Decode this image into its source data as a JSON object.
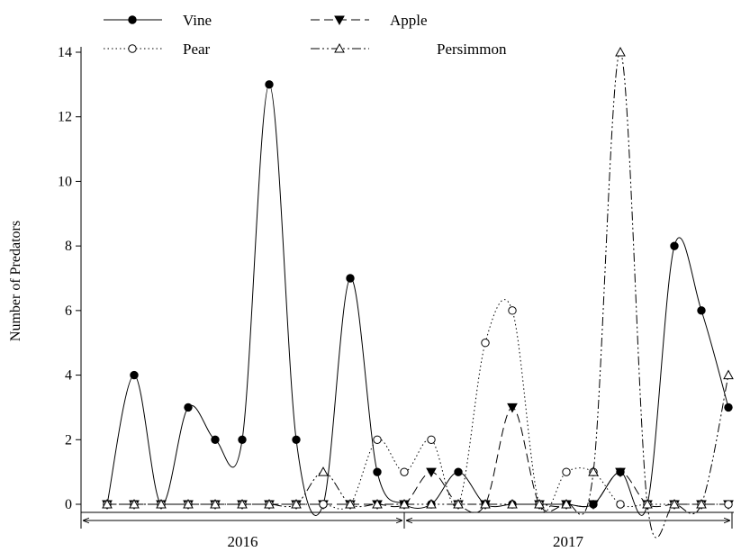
{
  "chart_data": {
    "type": "line",
    "title": "",
    "xlabel": "",
    "ylabel": "Number of Predators",
    "ylim": [
      0,
      14
    ],
    "yticks": [
      0,
      2,
      4,
      6,
      8,
      10,
      12,
      14
    ],
    "x_range": [
      1,
      24
    ],
    "grid": false,
    "legend_position": "top",
    "period_labels": [
      {
        "label": "2016",
        "from": 0,
        "to": 12
      },
      {
        "label": "2017",
        "from": 12,
        "to": 25
      }
    ],
    "series": [
      {
        "name": "Vine",
        "marker": "filled-circle",
        "line": "solid",
        "values": [
          0,
          4,
          0,
          3,
          2,
          2,
          13,
          2,
          0,
          7,
          1,
          0,
          0,
          1,
          0,
          0,
          0,
          0,
          0,
          1,
          0,
          8,
          6,
          3
        ]
      },
      {
        "name": "Apple",
        "marker": "filled-triangle-down",
        "line": "dash",
        "values": [
          0,
          0,
          0,
          0,
          0,
          0,
          0,
          0,
          0,
          0,
          0,
          0,
          1,
          0,
          0,
          3,
          0,
          0,
          0,
          1,
          0,
          0,
          0,
          0
        ]
      },
      {
        "name": "Pear",
        "marker": "open-circle",
        "line": "dot",
        "values": [
          0,
          0,
          0,
          0,
          0,
          0,
          0,
          0,
          0,
          0,
          2,
          1,
          2,
          0,
          5,
          6,
          0,
          1,
          1,
          0,
          0,
          0,
          0,
          0
        ]
      },
      {
        "name": "Persimmon",
        "marker": "open-triangle-up",
        "line": "dash-dot-dot",
        "values": [
          0,
          0,
          0,
          0,
          0,
          0,
          0,
          0,
          1,
          0,
          0,
          0,
          0,
          0,
          0,
          0,
          0,
          0,
          1,
          14,
          0,
          0,
          0,
          4
        ]
      }
    ]
  }
}
